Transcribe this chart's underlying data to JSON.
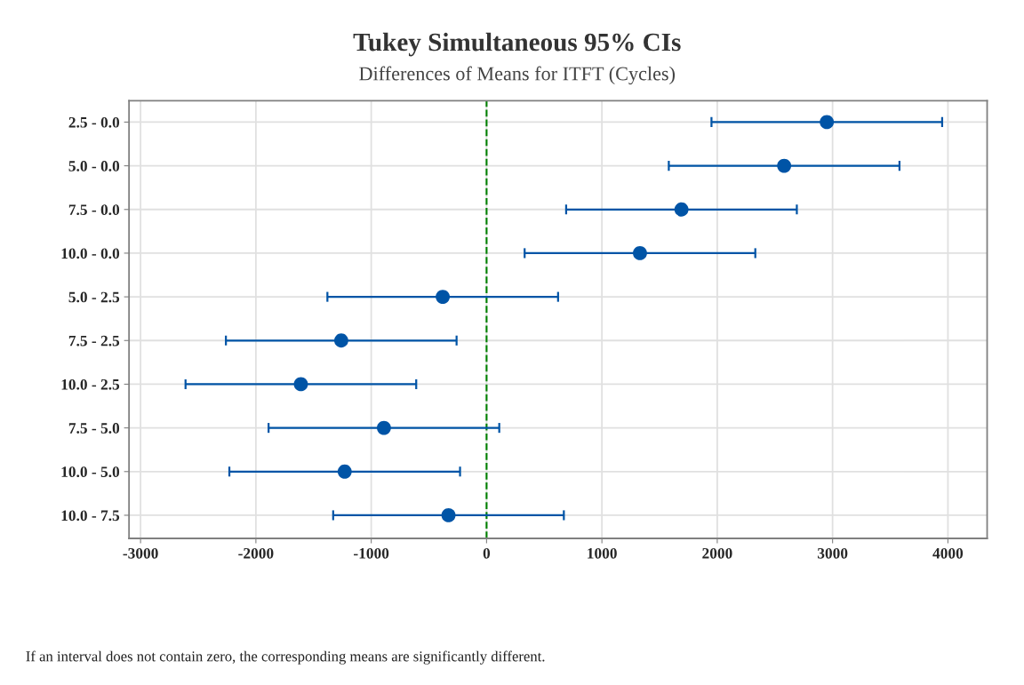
{
  "chart_data": {
    "type": "scatter",
    "orientation": "horizontal",
    "title": "Tukey Simultaneous 95% CIs",
    "subtitle": "Differences of Means for ITFT (Cycles)",
    "categories": [
      "2.5 - 0.0",
      "5.0 - 0.0",
      "7.5 - 0.0",
      "10.0 - 0.0",
      "5.0 - 2.5",
      "7.5 - 2.5",
      "10.0 - 2.5",
      "7.5 - 5.0",
      "10.0 - 5.0",
      "10.0 - 7.5"
    ],
    "series": [
      {
        "color": "#0054a6",
        "values": [
          2950,
          2580,
          1690,
          1330,
          -380,
          -1260,
          -1610,
          -890,
          -1230,
          -330
        ],
        "errors": [
          1000,
          1000,
          1000,
          1000,
          1000,
          1000,
          1000,
          1000,
          1000,
          1000
        ]
      }
    ],
    "xlim": [
      -3100,
      4340
    ],
    "xticks": [
      -3000,
      -2000,
      -1000,
      0,
      1000,
      2000,
      3000,
      4000
    ],
    "ref_lines": [
      {
        "axis": "x",
        "value": 0,
        "color": "#008000",
        "line_style": "dashed"
      }
    ],
    "grid": true,
    "marker": "circle",
    "annotations": [
      "If an interval does not contain zero, the corresponding means are significantly different."
    ]
  }
}
